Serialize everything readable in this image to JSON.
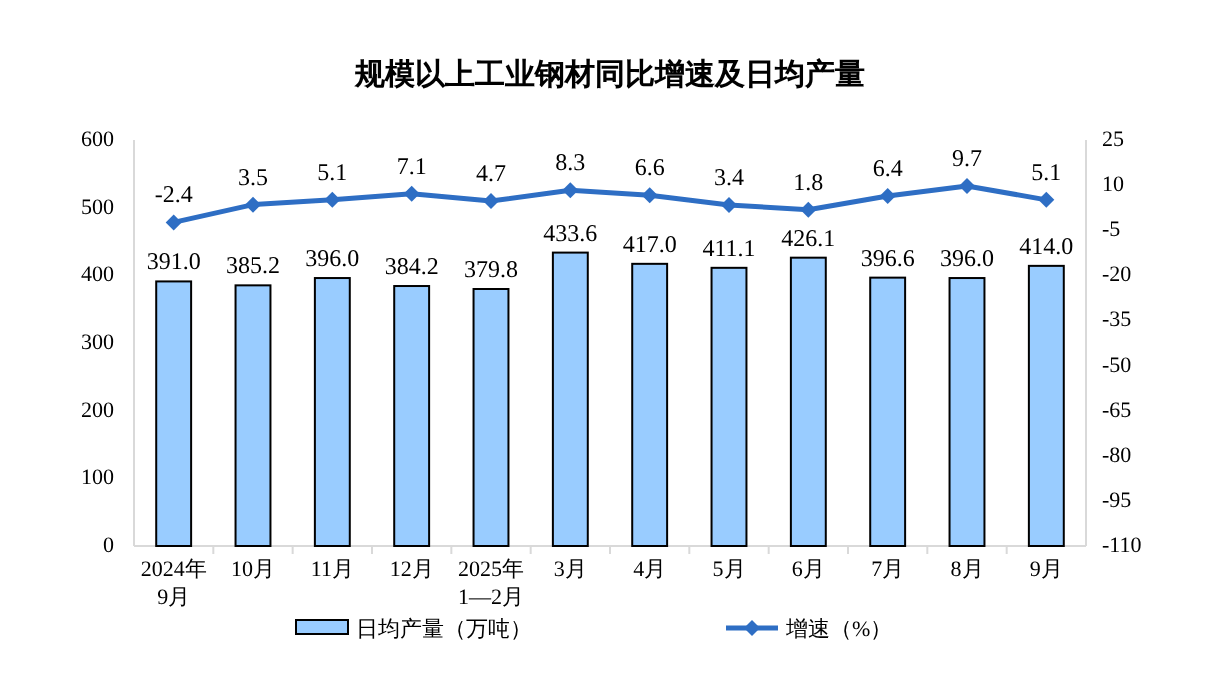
{
  "chart_data": {
    "type": "bar",
    "title": "规模以上工业钢材同比增速及日均产量",
    "categories": [
      "2024年\n9月",
      "10月",
      "11月",
      "12月",
      "2025年\n1—2月",
      "3月",
      "4月",
      "5月",
      "6月",
      "7月",
      "8月",
      "9月"
    ],
    "series": [
      {
        "name": "日均产量（万吨）",
        "type": "bar",
        "color": "#99ccff",
        "values": [
          391.0,
          385.2,
          396.0,
          384.2,
          379.8,
          433.6,
          417.0,
          411.1,
          426.1,
          396.6,
          396.0,
          414.0
        ],
        "value_labels": [
          "391.0",
          "385.2",
          "396.0",
          "384.2",
          "379.8",
          "433.6",
          "417.0",
          "411.1",
          "426.1",
          "396.6",
          "396.0",
          "414.0"
        ]
      },
      {
        "name": "增速（%）",
        "type": "line",
        "axis": "y2",
        "color": "#2e6ec4",
        "marker": "diamond",
        "values": [
          -2.4,
          3.5,
          5.1,
          7.1,
          4.7,
          8.3,
          6.6,
          3.4,
          1.8,
          6.4,
          9.7,
          5.1
        ]
      }
    ],
    "ylim": [
      0,
      600
    ],
    "yticks": [
      0,
      100,
      200,
      300,
      400,
      500,
      600
    ],
    "y2lim": [
      -110,
      25
    ],
    "y2ticks": [
      -110,
      -95,
      -80,
      -65,
      -50,
      -35,
      -20,
      -5,
      10,
      25
    ],
    "data_labels": true,
    "legend": "bottom"
  }
}
